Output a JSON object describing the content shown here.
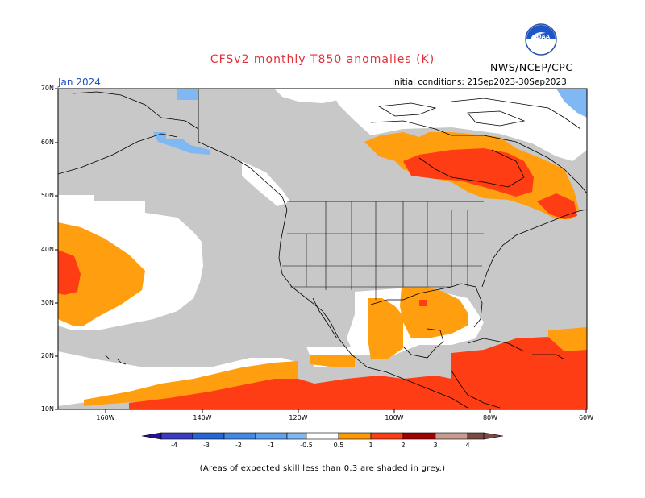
{
  "title": "CFSv2 monthly T850 anomalies (K)",
  "agency": "NWS/NCEP/CPC",
  "logo_text": "NOAA",
  "month": "Jan 2024",
  "initial_conditions": "Initial conditions: 21Sep2023-30Sep2023",
  "lat_labels": [
    "70N",
    "60N",
    "50N",
    "40N",
    "30N",
    "20N",
    "10N"
  ],
  "lon_labels": [
    "160W",
    "140W",
    "120W",
    "100W",
    "80W",
    "60W"
  ],
  "colorbar": {
    "labels": [
      "-4",
      "-3",
      "-2",
      "-1",
      "-0.5",
      "0.5",
      "1",
      "2",
      "3",
      "4"
    ],
    "colors": [
      "#2a0f8f",
      "#3b3bbf",
      "#2466d6",
      "#3f8ae6",
      "#7fb8f2",
      "#ffffff",
      "#ff9900",
      "#ff3c14",
      "#a30000",
      "#c89b8f",
      "#7a4a45"
    ]
  },
  "footnote": "(Areas of expected skill less than 0.3 are shaded in grey.)",
  "colors": {
    "grey": "#c8c8c8",
    "white": "#ffffff",
    "orange": "#ff9e0f",
    "red": "#ff3d14",
    "lightblue": "#7fb8f2",
    "title": "#e0303a"
  }
}
